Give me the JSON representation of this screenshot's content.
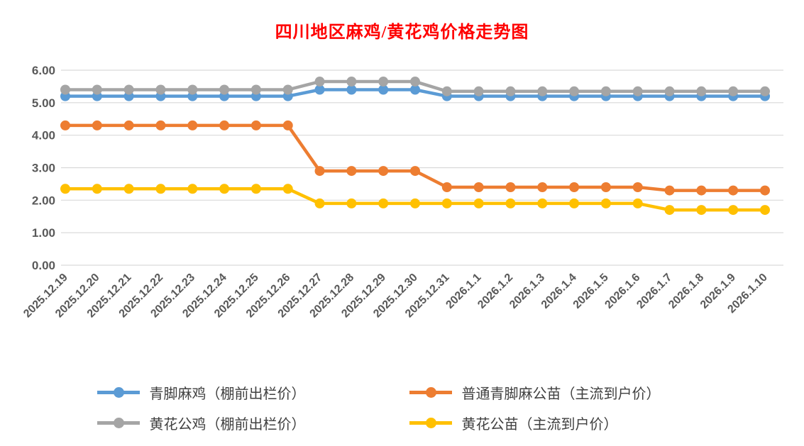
{
  "chart_data": {
    "type": "line",
    "title": "四川地区麻鸡/黄花鸡价格走势图",
    "xlabel": "",
    "ylabel": "",
    "ylim": [
      0,
      6
    ],
    "ytick_labels": [
      "0.00",
      "1.00",
      "2.00",
      "3.00",
      "4.00",
      "5.00",
      "6.00"
    ],
    "grid": "on",
    "legend_position": "bottom",
    "categories": [
      "2025.12.19",
      "2025.12.20",
      "2025.12.21",
      "2025.12.22",
      "2025.12.23",
      "2025.12.24",
      "2025.12.25",
      "2025.12.26",
      "2025.12.27",
      "2025.12.28",
      "2025.12.29",
      "2025.12.30",
      "2025.12.31",
      "2026.1.1",
      "2026.1.2",
      "2026.1.3",
      "2026.1.4",
      "2026.1.5",
      "2026.1.6",
      "2026.1.7",
      "2026.1.8",
      "2026.1.9",
      "2026.1.10"
    ],
    "series": [
      {
        "name": "青脚麻鸡（棚前出栏价）",
        "color": "#5B9BD5",
        "values": [
          5.2,
          5.2,
          5.2,
          5.2,
          5.2,
          5.2,
          5.2,
          5.2,
          5.4,
          5.4,
          5.4,
          5.4,
          5.2,
          5.2,
          5.2,
          5.2,
          5.2,
          5.2,
          5.2,
          5.2,
          5.2,
          5.2,
          5.2
        ]
      },
      {
        "name": "普通青脚麻公苗（主流到户价）",
        "color": "#ED7D31",
        "values": [
          4.3,
          4.3,
          4.3,
          4.3,
          4.3,
          4.3,
          4.3,
          4.3,
          2.9,
          2.9,
          2.9,
          2.9,
          2.4,
          2.4,
          2.4,
          2.4,
          2.4,
          2.4,
          2.4,
          2.3,
          2.3,
          2.3,
          2.3
        ]
      },
      {
        "name": "黄花公鸡（棚前出栏价）",
        "color": "#A5A5A5",
        "values": [
          5.4,
          5.4,
          5.4,
          5.4,
          5.4,
          5.4,
          5.4,
          5.4,
          5.65,
          5.65,
          5.65,
          5.65,
          5.35,
          5.35,
          5.35,
          5.35,
          5.35,
          5.35,
          5.35,
          5.35,
          5.35,
          5.35,
          5.35
        ]
      },
      {
        "name": "黄花公苗（主流到户价）",
        "color": "#FFC000",
        "values": [
          2.35,
          2.35,
          2.35,
          2.35,
          2.35,
          2.35,
          2.35,
          2.35,
          1.9,
          1.9,
          1.9,
          1.9,
          1.9,
          1.9,
          1.9,
          1.9,
          1.9,
          1.9,
          1.9,
          1.7,
          1.7,
          1.7,
          1.7
        ]
      }
    ]
  },
  "colors": {
    "title": "#FF0000",
    "tick": "#595959",
    "grid": "#D9D9D9",
    "legend_text": "#404040",
    "background": "#FFFFFF"
  }
}
